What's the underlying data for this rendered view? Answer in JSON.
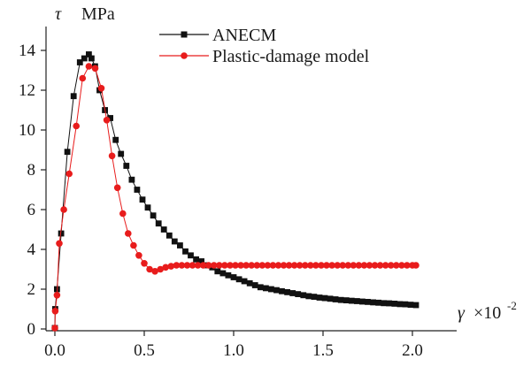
{
  "chart_data": {
    "type": "line",
    "xlabel_symbol": "γ",
    "xlabel_unit": "×10",
    "xlabel_exp": "-2",
    "ylabel_symbol": "τ",
    "ylabel_unit": "MPa",
    "xlim": [
      0,
      2.2
    ],
    "ylim": [
      0,
      15
    ],
    "xticks": [
      0.0,
      0.5,
      1.0,
      1.5,
      2.0
    ],
    "xtick_labels": [
      "0.0",
      "0.5",
      "1.0",
      "1.5",
      "2.0"
    ],
    "yticks": [
      0,
      2,
      4,
      6,
      8,
      10,
      12,
      14
    ],
    "ytick_labels": [
      "0",
      "2",
      "4",
      "6",
      "8",
      "10",
      "12",
      "14"
    ],
    "legend_position": "top-right",
    "series": [
      {
        "name": "ANECM",
        "color": "#111111",
        "marker": "square",
        "x": [
          0.0,
          0.002,
          0.012,
          0.035,
          0.07,
          0.105,
          0.14,
          0.165,
          0.19,
          0.205,
          0.225,
          0.25,
          0.28,
          0.31,
          0.34,
          0.37,
          0.4,
          0.43,
          0.46,
          0.49,
          0.52,
          0.55,
          0.58,
          0.61,
          0.64,
          0.67,
          0.7,
          0.73,
          0.76,
          0.79,
          0.82,
          0.85,
          0.88,
          0.91,
          0.94,
          0.97,
          1.0,
          1.03,
          1.06,
          1.09,
          1.12,
          1.15,
          1.18,
          1.21,
          1.24,
          1.27,
          1.3,
          1.33,
          1.36,
          1.39,
          1.42,
          1.45,
          1.48,
          1.51,
          1.54,
          1.57,
          1.6,
          1.63,
          1.66,
          1.69,
          1.72,
          1.75,
          1.78,
          1.81,
          1.84,
          1.87,
          1.9,
          1.93,
          1.96,
          1.99,
          2.02
        ],
        "y": [
          0.05,
          1.0,
          2.0,
          4.8,
          8.9,
          11.7,
          13.4,
          13.6,
          13.8,
          13.6,
          13.2,
          12.0,
          11.0,
          10.6,
          9.5,
          8.8,
          8.2,
          7.5,
          7.0,
          6.5,
          6.1,
          5.7,
          5.3,
          5.0,
          4.7,
          4.4,
          4.2,
          3.9,
          3.7,
          3.5,
          3.4,
          3.2,
          3.1,
          2.9,
          2.8,
          2.7,
          2.6,
          2.5,
          2.4,
          2.3,
          2.2,
          2.1,
          2.05,
          2.0,
          1.95,
          1.9,
          1.85,
          1.8,
          1.75,
          1.7,
          1.65,
          1.62,
          1.58,
          1.55,
          1.52,
          1.49,
          1.46,
          1.44,
          1.42,
          1.4,
          1.38,
          1.36,
          1.34,
          1.32,
          1.3,
          1.29,
          1.27,
          1.25,
          1.24,
          1.22,
          1.2
        ]
      },
      {
        "name": "Plastic-damage model",
        "color": "#e81c1c",
        "marker": "circle",
        "x": [
          0.0,
          0.002,
          0.012,
          0.025,
          0.05,
          0.08,
          0.12,
          0.155,
          0.19,
          0.225,
          0.26,
          0.29,
          0.32,
          0.35,
          0.38,
          0.41,
          0.44,
          0.47,
          0.5,
          0.53,
          0.56,
          0.59,
          0.62,
          0.65,
          0.68,
          0.71,
          0.74,
          0.77,
          0.8,
          0.83,
          0.86,
          0.89,
          0.92,
          0.95,
          0.98,
          1.01,
          1.04,
          1.07,
          1.1,
          1.13,
          1.16,
          1.19,
          1.22,
          1.25,
          1.28,
          1.31,
          1.34,
          1.37,
          1.4,
          1.43,
          1.46,
          1.49,
          1.52,
          1.55,
          1.58,
          1.61,
          1.64,
          1.67,
          1.7,
          1.73,
          1.76,
          1.79,
          1.82,
          1.85,
          1.88,
          1.91,
          1.94,
          1.97,
          2.0,
          2.02
        ],
        "y": [
          0.05,
          0.9,
          1.7,
          4.3,
          6.0,
          7.8,
          10.2,
          12.6,
          13.2,
          13.1,
          12.1,
          10.5,
          8.7,
          7.1,
          5.8,
          4.8,
          4.2,
          3.7,
          3.3,
          3.0,
          2.9,
          3.0,
          3.1,
          3.15,
          3.2,
          3.2,
          3.2,
          3.2,
          3.2,
          3.2,
          3.2,
          3.2,
          3.2,
          3.2,
          3.2,
          3.2,
          3.2,
          3.2,
          3.2,
          3.2,
          3.2,
          3.2,
          3.2,
          3.2,
          3.2,
          3.2,
          3.2,
          3.2,
          3.2,
          3.2,
          3.2,
          3.2,
          3.2,
          3.2,
          3.2,
          3.2,
          3.2,
          3.2,
          3.2,
          3.2,
          3.2,
          3.2,
          3.2,
          3.2,
          3.2,
          3.2,
          3.2,
          3.2,
          3.2,
          3.2
        ]
      }
    ]
  }
}
